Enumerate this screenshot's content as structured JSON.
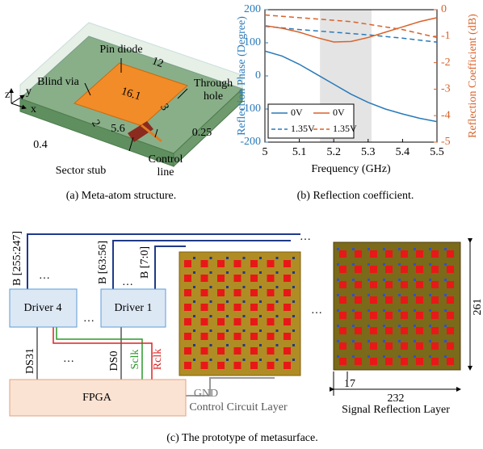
{
  "figure_a": {
    "pin_diode": "Pin diode",
    "width": "12",
    "blind_via": "Blind via",
    "through_hole": [
      "Through",
      "hole"
    ],
    "length": "16.1",
    "gap": "3",
    "via_gap": "2",
    "stub": "5.6",
    "margin": "0.4",
    "thickness": "0.25",
    "sector_stub": "Sector stub",
    "control_line": [
      "Control",
      "line"
    ],
    "axis_x": "x",
    "axis_y": "y",
    "axis_z": "z",
    "caption": "(a) Meta-atom structure."
  },
  "chart_data": {
    "type": "line",
    "caption": "(b) Reflection coefficient.",
    "x_label": "Frequency (GHz)",
    "y_label": "Reflection Phase (Degree)",
    "y2_label": "Reflection Coefficient (dB)",
    "x": [
      5,
      5.05,
      5.1,
      5.15,
      5.2,
      5.25,
      5.3,
      5.35,
      5.4,
      5.45,
      5.5
    ],
    "xlim": [
      5,
      5.5
    ],
    "xticks": [
      5,
      5.1,
      5.2,
      5.3,
      5.4,
      5.5
    ],
    "ylim": [
      -200,
      200
    ],
    "yticks": [
      -200,
      -100,
      0,
      100,
      200
    ],
    "y2lim": [
      -5,
      0
    ],
    "y2ticks": [
      -5,
      -4,
      -3,
      -2,
      -1,
      0
    ],
    "shaded_range": [
      5.16,
      5.31
    ],
    "series": [
      {
        "name": "0V",
        "color": "#2a7ab9",
        "linestyle": "solid",
        "values": [
          75,
          60,
          35,
          5,
          -25,
          -55,
          -80,
          -100,
          -115,
          -128,
          -138
        ]
      },
      {
        "name": "1.35V",
        "color": "#2a7ab9",
        "linestyle": "dashed",
        "values": [
          150,
          145,
          140,
          136,
          132,
          128,
          124,
          119,
          114,
          108,
          102
        ]
      },
      {
        "name": "0V",
        "color": "#d9622b",
        "linestyle": "solid",
        "axis": "y2",
        "values": [
          -0.6,
          -0.7,
          -0.85,
          -1.05,
          -1.22,
          -1.2,
          -1.05,
          -0.85,
          -0.65,
          -0.45,
          -0.3
        ]
      },
      {
        "name": "1.35V",
        "color": "#d9622b",
        "linestyle": "dashed",
        "axis": "y2",
        "values": [
          -0.2,
          -0.25,
          -0.3,
          -0.35,
          -0.4,
          -0.45,
          -0.55,
          -0.65,
          -0.75,
          -0.9,
          -1.05
        ]
      }
    ]
  },
  "figure_c": {
    "bus_a": "B [255:247]",
    "bus_b": "B [63:56]",
    "bus_c": "B [7:0]",
    "ellipsis": "…",
    "driver_4": "Driver 4",
    "driver_1": "Driver 1",
    "ds31": "DS31",
    "ds0": "DS0",
    "sclk": "Sclk",
    "rclk": "Rclk",
    "fpga": "FPGA",
    "gnd": "GND",
    "control_layer": "Control Circuit Layer",
    "height": "261",
    "pitch": "17",
    "width": "232",
    "signal_layer": "Signal Reflection Layer",
    "caption": "(c) The prototype of metasurface."
  }
}
